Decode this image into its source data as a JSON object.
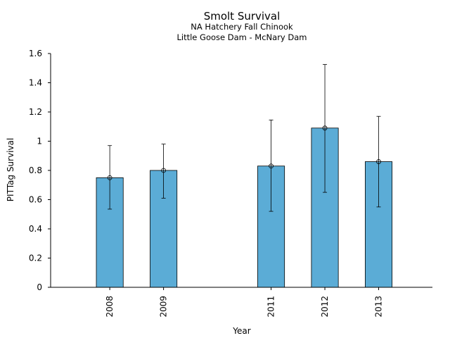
{
  "chart_data": {
    "type": "bar",
    "title": "Smolt Survival",
    "subtitle_lines": [
      "NA Hatchery Fall Chinook",
      "Little Goose Dam - McNary Dam"
    ],
    "xlabel": "Year",
    "ylabel": "PITTag Survival",
    "categories": [
      "2008",
      "2009",
      "2011",
      "2012",
      "2013"
    ],
    "x_positions": [
      2008,
      2009,
      2011,
      2012,
      2013
    ],
    "xlim": [
      2006.9,
      2014.0
    ],
    "values": [
      0.75,
      0.8,
      0.83,
      1.09,
      0.86
    ],
    "error_lower": [
      0.535,
      0.61,
      0.52,
      0.65,
      0.55
    ],
    "error_upper": [
      0.97,
      0.98,
      1.145,
      1.525,
      1.17
    ],
    "ylim": [
      0,
      1.6
    ],
    "yticks": [
      0,
      0.2,
      0.4,
      0.6,
      0.8,
      1,
      1.2,
      1.4,
      1.6
    ],
    "ytick_labels": [
      "0",
      "0.2",
      "0.4",
      "0.6",
      "0.8",
      "1",
      "1.2",
      "1.4",
      "1.6"
    ],
    "bar_color": "#5BACD6",
    "grid": false
  }
}
